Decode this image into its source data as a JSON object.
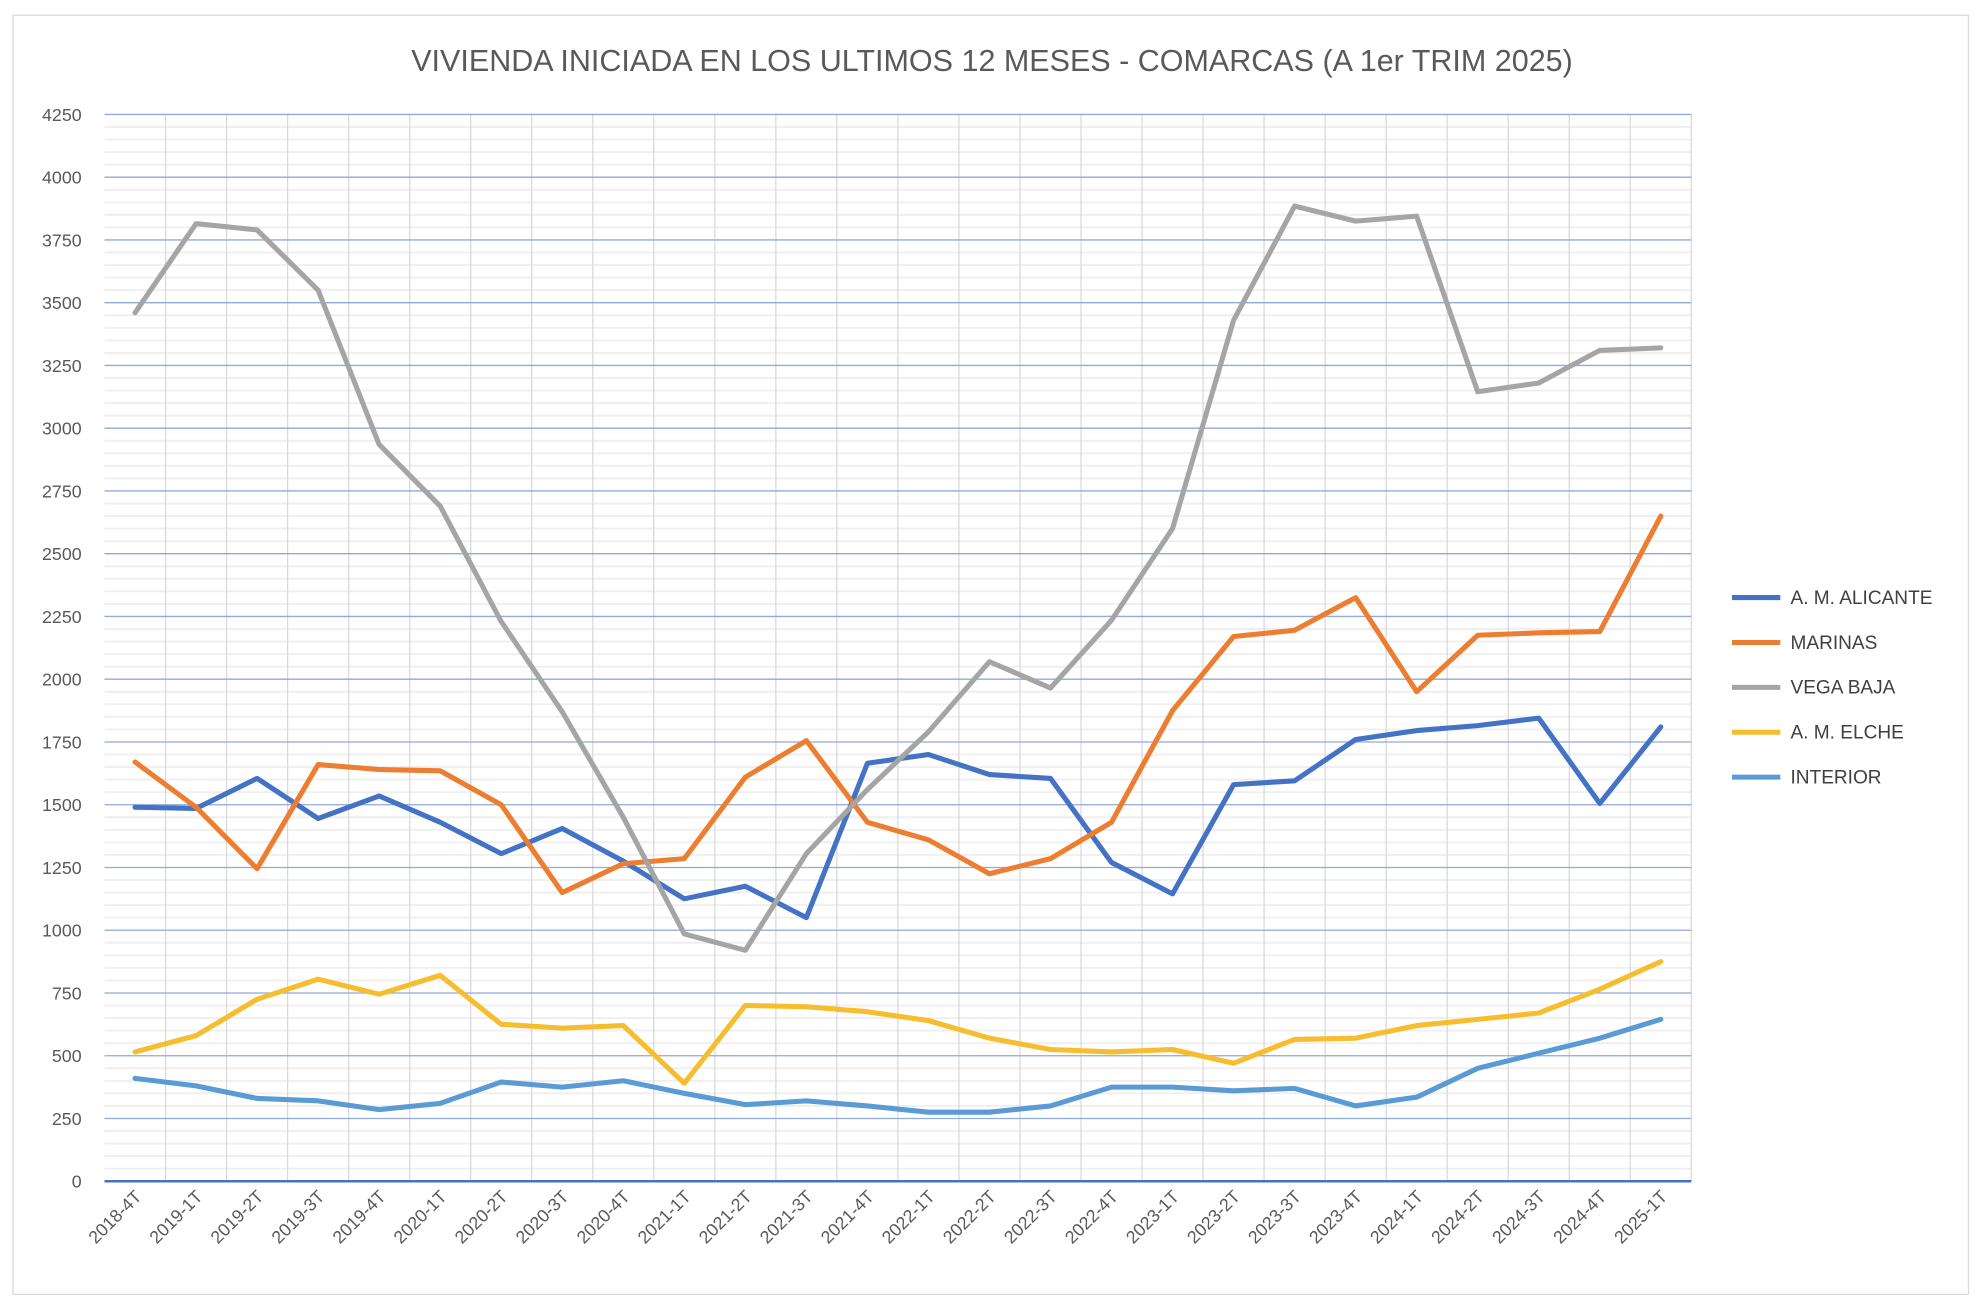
{
  "chart_data": {
    "type": "line",
    "title": "VIVIENDA INICIADA EN LOS ULTIMOS 12 MESES - COMARCAS (A 1er TRIM 2025)",
    "xlabel": "",
    "ylabel": "",
    "ylim": [
      0,
      4250
    ],
    "yticks": [
      0,
      250,
      500,
      750,
      1000,
      1250,
      1500,
      1750,
      2000,
      2250,
      2500,
      2750,
      3000,
      3250,
      3500,
      3750,
      4000,
      4250
    ],
    "grid": true,
    "legend_position": "right",
    "categories": [
      "2018-4T",
      "2019-1T",
      "2019-2T",
      "2019-3T",
      "2019-4T",
      "2020-1T",
      "2020-2T",
      "2020-3T",
      "2020-4T",
      "2021-1T",
      "2021-2T",
      "2021-3T",
      "2021-4T",
      "2022-1T",
      "2022-2T",
      "2022-3T",
      "2022-4T",
      "2023-1T",
      "2023-2T",
      "2023-3T",
      "2023-4T",
      "2024-1T",
      "2024-2T",
      "2024-3T",
      "2024-4T",
      "2025-1T"
    ],
    "series": [
      {
        "name": "A. M. ALICANTE",
        "color": "#4472C4",
        "values": [
          1490,
          1485,
          1605,
          1445,
          1535,
          1430,
          1305,
          1405,
          1275,
          1125,
          1175,
          1050,
          1665,
          1700,
          1620,
          1605,
          1270,
          1145,
          1580,
          1595,
          1760,
          1795,
          1815,
          1845,
          1505,
          1810
        ]
      },
      {
        "name": "MARINAS",
        "color": "#ED7D31",
        "values": [
          1670,
          1490,
          1245,
          1660,
          1640,
          1635,
          1500,
          1150,
          1265,
          1285,
          1610,
          1755,
          1430,
          1360,
          1225,
          1285,
          1430,
          1875,
          2170,
          2195,
          2325,
          1950,
          2175,
          2185,
          2190,
          2650
        ]
      },
      {
        "name": "VEGA BAJA",
        "color": "#A5A5A5",
        "values": [
          3460,
          3815,
          3790,
          3550,
          2935,
          2690,
          2230,
          1870,
          1450,
          985,
          920,
          1305,
          1560,
          1790,
          2070,
          1965,
          2235,
          2600,
          3430,
          3885,
          3825,
          3845,
          3145,
          3180,
          3310,
          3320
        ]
      },
      {
        "name": "A. M. ELCHE",
        "color": "#F6BE2E",
        "values": [
          515,
          580,
          725,
          805,
          745,
          820,
          625,
          610,
          620,
          390,
          700,
          695,
          675,
          640,
          570,
          525,
          515,
          525,
          470,
          565,
          570,
          620,
          645,
          670,
          765,
          875
        ]
      },
      {
        "name": "INTERIOR",
        "color": "#5B9BD5",
        "values": [
          410,
          380,
          330,
          320,
          285,
          310,
          395,
          375,
          400,
          350,
          305,
          320,
          300,
          275,
          275,
          300,
          375,
          375,
          360,
          370,
          300,
          335,
          450,
          510,
          570,
          645
        ]
      }
    ]
  }
}
